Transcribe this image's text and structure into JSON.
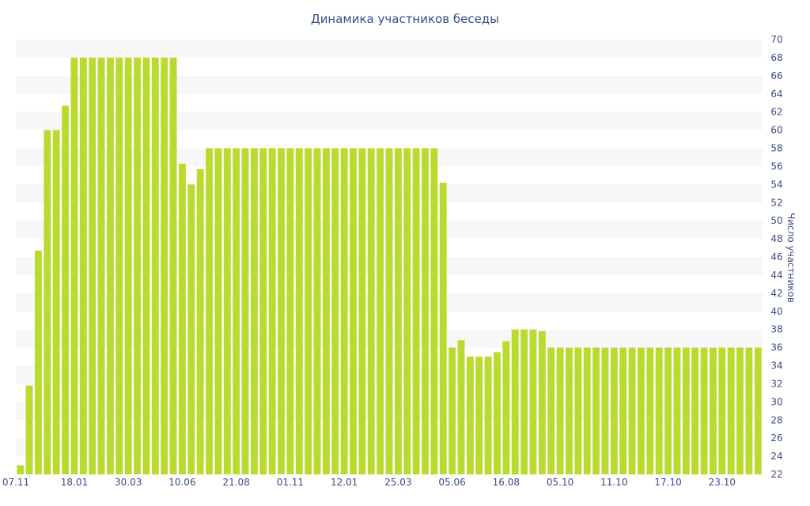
{
  "chart_data": {
    "type": "bar",
    "title": "Динамика участников беседы",
    "ylabel": "Число участников",
    "xlabel": "",
    "ylim": [
      22,
      70
    ],
    "yticks": [
      22,
      24,
      26,
      28,
      30,
      32,
      34,
      36,
      38,
      40,
      42,
      44,
      46,
      48,
      50,
      52,
      54,
      56,
      58,
      60,
      62,
      64,
      66,
      68,
      70
    ],
    "xtick_labels": [
      "07.11",
      "18.01",
      "30.03",
      "10.06",
      "21.08",
      "01.11",
      "12.01",
      "25.03",
      "05.06",
      "16.08",
      "05.10",
      "11.10",
      "17.10",
      "23.10"
    ],
    "xtick_index": [
      0,
      6,
      12,
      18,
      24,
      30,
      36,
      42,
      48,
      54,
      60,
      66,
      72,
      78
    ],
    "grid": "horizontal bands",
    "y_axis_side": "right",
    "bar_color": "#bada2f",
    "band_color": "#f7f7f7",
    "text_color": "#3b4a8c",
    "values": [
      23,
      31.8,
      46.7,
      60,
      60,
      62.7,
      68,
      68,
      68,
      68,
      68,
      68,
      68,
      68,
      68,
      68,
      68,
      68,
      56.3,
      54,
      55.7,
      58,
      58,
      58,
      58,
      58,
      58,
      58,
      58,
      58,
      58,
      58,
      58,
      58,
      58,
      58,
      58,
      58,
      58,
      58,
      58,
      58,
      58,
      58,
      58,
      58,
      58,
      54.2,
      36,
      36.8,
      35,
      35,
      35,
      35.5,
      36.7,
      38,
      38,
      38,
      37.8,
      36,
      36,
      36,
      36,
      36,
      36,
      36,
      36,
      36,
      36,
      36,
      36,
      36,
      36,
      36,
      36,
      36,
      36,
      36,
      36,
      36,
      36,
      36,
      36
    ]
  }
}
